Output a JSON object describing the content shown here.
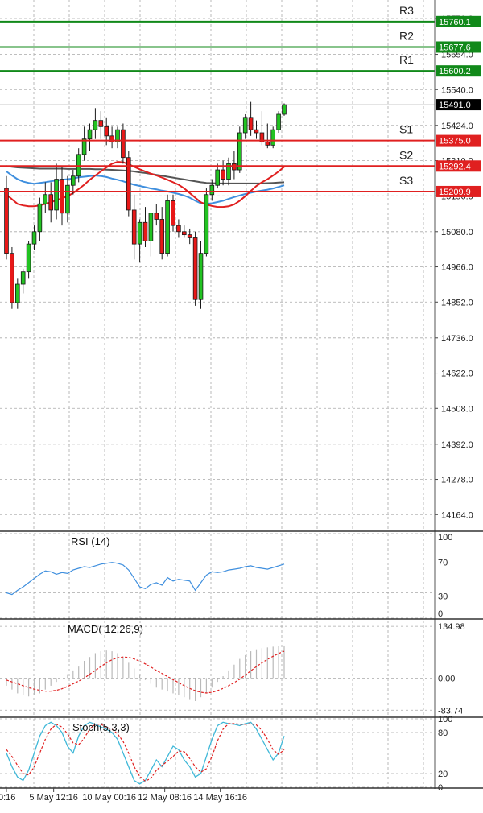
{
  "chart_data": {
    "type": "candlestick",
    "price_panel": {
      "ylim": [
        14110,
        15830
      ],
      "y_ticks": [
        "15770.0",
        "15654.0",
        "15540.0",
        "15424.0",
        "15310.0",
        "15196.0",
        "15080.0",
        "14966.0",
        "14852.0",
        "14736.0",
        "14622.0",
        "14508.0",
        "14392.0",
        "14278.0",
        "14164.0"
      ],
      "current_price": {
        "label": "15491.0",
        "value": 15491.0
      },
      "levels": [
        {
          "name": "R3",
          "label": "15760.1",
          "value": 15760.1,
          "color": "#11891a"
        },
        {
          "name": "R2",
          "label": "15677.6",
          "value": 15677.6,
          "color": "#11891a"
        },
        {
          "name": "R1",
          "label": "15600.2",
          "value": 15600.2,
          "color": "#11891a"
        },
        {
          "name": "S1",
          "label": "15375.0",
          "value": 15375.0,
          "color": "#e02020"
        },
        {
          "name": "S2",
          "label": "15292.4",
          "value": 15292.4,
          "color": "#e02020"
        },
        {
          "name": "S3",
          "label": "15209.9",
          "value": 15209.9,
          "color": "#e02020"
        }
      ],
      "candles": [
        [
          15220,
          15260,
          14990,
          15010
        ],
        [
          15010,
          15030,
          14830,
          14850
        ],
        [
          14850,
          14930,
          14830,
          14910
        ],
        [
          14910,
          14960,
          14880,
          14950
        ],
        [
          14950,
          15050,
          14930,
          15040
        ],
        [
          15040,
          15100,
          15020,
          15080
        ],
        [
          15080,
          15190,
          15050,
          15170
        ],
        [
          15170,
          15240,
          15140,
          15200
        ],
        [
          15200,
          15240,
          15110,
          15150
        ],
        [
          15150,
          15300,
          15120,
          15250
        ],
        [
          15250,
          15290,
          15100,
          15140
        ],
        [
          15140,
          15260,
          15110,
          15230
        ],
        [
          15230,
          15280,
          15200,
          15260
        ],
        [
          15260,
          15350,
          15240,
          15330
        ],
        [
          15330,
          15420,
          15310,
          15380
        ],
        [
          15380,
          15430,
          15340,
          15410
        ],
        [
          15410,
          15480,
          15380,
          15440
        ],
        [
          15440,
          15470,
          15380,
          15420
        ],
        [
          15420,
          15450,
          15360,
          15390
        ],
        [
          15390,
          15420,
          15350,
          15370
        ],
        [
          15370,
          15420,
          15350,
          15410
        ],
        [
          15410,
          15430,
          15300,
          15320
        ],
        [
          15320,
          15340,
          15130,
          15150
        ],
        [
          15150,
          15200,
          14990,
          15040
        ],
        [
          15040,
          15120,
          14980,
          15110
        ],
        [
          15110,
          15160,
          15030,
          15050
        ],
        [
          15050,
          15140,
          15000,
          15140
        ],
        [
          15140,
          15170,
          15100,
          15120
        ],
        [
          15120,
          15160,
          14990,
          15010
        ],
        [
          15010,
          15200,
          15000,
          15180
        ],
        [
          15180,
          15200,
          15080,
          15100
        ],
        [
          15100,
          15120,
          15060,
          15080
        ],
        [
          15080,
          15100,
          15060,
          15070
        ],
        [
          15070,
          15090,
          15040,
          15060
        ],
        [
          15060,
          15080,
          14840,
          14860
        ],
        [
          14860,
          15050,
          14830,
          15010
        ],
        [
          15010,
          15220,
          15000,
          15200
        ],
        [
          15200,
          15250,
          15180,
          15230
        ],
        [
          15230,
          15300,
          15220,
          15280
        ],
        [
          15280,
          15310,
          15230,
          15250
        ],
        [
          15250,
          15320,
          15230,
          15300
        ],
        [
          15300,
          15340,
          15250,
          15280
        ],
        [
          15280,
          15420,
          15270,
          15400
        ],
        [
          15400,
          15460,
          15380,
          15450
        ],
        [
          15450,
          15500,
          15390,
          15410
        ],
        [
          15410,
          15440,
          15380,
          15400
        ],
        [
          15400,
          15470,
          15360,
          15370
        ],
        [
          15370,
          15430,
          15350,
          15360
        ],
        [
          15360,
          15420,
          15350,
          15410
        ],
        [
          15410,
          15470,
          15400,
          15460
        ],
        [
          15460,
          15495,
          15455,
          15491
        ]
      ],
      "moving_averages": [
        {
          "color": "#3f8fde",
          "values": [
            15275,
            15262,
            15250,
            15242,
            15238,
            15235,
            15238,
            15240,
            15243,
            15246,
            15248,
            15250,
            15252,
            15256,
            15258,
            15260,
            15262,
            15260,
            15257,
            15252,
            15248,
            15243,
            15237,
            15232,
            15228,
            15224,
            15220,
            15217,
            15213,
            15210,
            15206,
            15202,
            15197,
            15190,
            15180,
            15172,
            15170,
            15172,
            15176,
            15180,
            15186,
            15192,
            15197,
            15202,
            15206,
            15210,
            15213,
            15216,
            15220,
            15225,
            15230
          ]
        },
        {
          "color": "#555555",
          "values": [
            15292,
            15290,
            15288,
            15287,
            15286,
            15285,
            15284,
            15284,
            15284,
            15284,
            15284,
            15283,
            15283,
            15283,
            15283,
            15283,
            15282,
            15282,
            15281,
            15280,
            15279,
            15278,
            15277,
            15275,
            15272,
            15270,
            15267,
            15264,
            15261,
            15258,
            15255,
            15252,
            15249,
            15246,
            15243,
            15240,
            15238,
            15237,
            15236,
            15236,
            15236,
            15236,
            15236,
            15236,
            15236,
            15236,
            15236,
            15237,
            15238,
            15239,
            15240
          ]
        },
        {
          "color": "#e02020",
          "values": [
            15200,
            15185,
            15170,
            15165,
            15162,
            15162,
            15165,
            15170,
            15175,
            15182,
            15188,
            15195,
            15205,
            15218,
            15232,
            15248,
            15262,
            15275,
            15288,
            15300,
            15306,
            15305,
            15298,
            15290,
            15282,
            15275,
            15268,
            15262,
            15255,
            15248,
            15240,
            15232,
            15220,
            15205,
            15190,
            15175,
            15168,
            15163,
            15160,
            15160,
            15162,
            15168,
            15180,
            15195,
            15212,
            15228,
            15240,
            15250,
            15262,
            15275,
            15290
          ]
        }
      ]
    },
    "rsi_panel": {
      "title": "RSI (14)",
      "ylim": [
        0,
        100
      ],
      "y_ticks": [
        "100",
        "70",
        "30",
        "0"
      ],
      "values": [
        30,
        28,
        33,
        37,
        42,
        47,
        52,
        56,
        55,
        52,
        54,
        53,
        57,
        59,
        61,
        60,
        62,
        64,
        65,
        66,
        65,
        63,
        57,
        47,
        37,
        35,
        40,
        42,
        39,
        48,
        44,
        46,
        45,
        44,
        33,
        42,
        51,
        55,
        54,
        55,
        57,
        58,
        59,
        61,
        62,
        60,
        59,
        58,
        60,
        62,
        64
      ],
      "color": "#3f8fde"
    },
    "macd_panel": {
      "title": "MACD( 12,26,9)",
      "ylim": [
        -100,
        150
      ],
      "y_ticks": [
        "134.98",
        "0.00",
        "-83.74"
      ],
      "histogram": [
        -20,
        -30,
        -40,
        -45,
        -48,
        -45,
        -40,
        -30,
        -20,
        -10,
        0,
        10,
        20,
        30,
        45,
        55,
        65,
        70,
        72,
        70,
        65,
        55,
        40,
        25,
        10,
        -5,
        -15,
        -25,
        -30,
        -35,
        -40,
        -45,
        -50,
        -55,
        -60,
        -50,
        -40,
        -25,
        -10,
        5,
        20,
        35,
        50,
        60,
        70,
        75,
        78,
        80,
        82,
        84,
        85
      ],
      "signal": [
        -5,
        -10,
        -15,
        -20,
        -25,
        -29,
        -32,
        -34,
        -34,
        -32,
        -28,
        -22,
        -15,
        -8,
        0,
        10,
        20,
        30,
        40,
        48,
        53,
        55,
        54,
        50,
        44,
        37,
        29,
        20,
        12,
        4,
        -4,
        -12,
        -20,
        -27,
        -33,
        -37,
        -39,
        -37,
        -33,
        -27,
        -20,
        -12,
        -3,
        8,
        19,
        30,
        40,
        49,
        57,
        64,
        70
      ],
      "color": "#e02020"
    },
    "stoch_panel": {
      "title": "Stoch(5,3,3)",
      "ylim": [
        0,
        100
      ],
      "y_ticks": [
        "100",
        "80",
        "20",
        "0"
      ],
      "k": [
        50,
        30,
        15,
        10,
        25,
        50,
        75,
        90,
        95,
        90,
        80,
        60,
        50,
        75,
        90,
        95,
        92,
        88,
        85,
        80,
        70,
        50,
        30,
        10,
        5,
        10,
        25,
        40,
        30,
        45,
        60,
        55,
        40,
        30,
        15,
        20,
        45,
        70,
        90,
        95,
        93,
        92,
        90,
        93,
        95,
        85,
        70,
        55,
        40,
        50,
        75
      ],
      "d": [
        55,
        45,
        32,
        20,
        18,
        30,
        50,
        70,
        85,
        92,
        88,
        78,
        65,
        62,
        72,
        85,
        92,
        92,
        88,
        85,
        78,
        67,
        50,
        30,
        16,
        9,
        13,
        25,
        32,
        38,
        45,
        53,
        52,
        42,
        30,
        22,
        27,
        45,
        68,
        85,
        93,
        93,
        92,
        92,
        93,
        91,
        83,
        70,
        55,
        48,
        55
      ],
      "k_color": "#3fb8d8",
      "d_color": "#e02020"
    },
    "x_axis": {
      "labels": [
        {
          "text": "0:16",
          "index": 0
        },
        {
          "text": "5 May 12:16",
          "index": 8.5
        },
        {
          "text": "10 May 00:16",
          "index": 18.5
        },
        {
          "text": "12 May 08:16",
          "index": 28.5
        },
        {
          "text": "14 May 16:16",
          "index": 38.5
        }
      ]
    }
  }
}
